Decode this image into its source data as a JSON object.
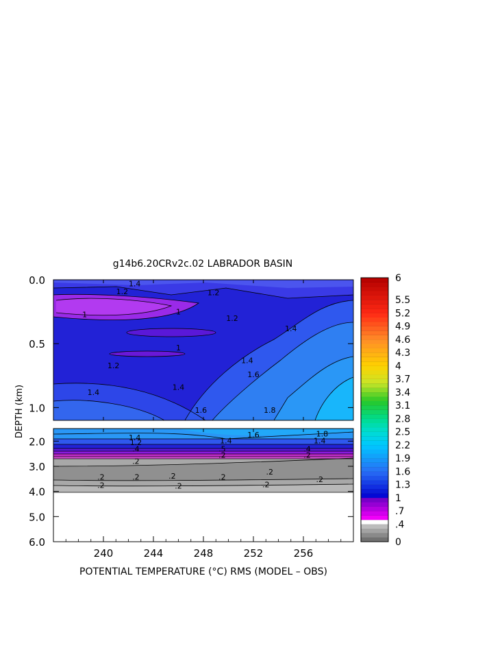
{
  "chart_data": {
    "type": "heatmap",
    "title": "g14b6.20CRv2c.02 LABRADOR BASIN",
    "xlabel": "POTENTIAL TEMPERATURE (°C) RMS (MODEL – OBS)",
    "ylabel": "DEPTH (km)",
    "x_ticks": [
      "240",
      "244",
      "248",
      "252",
      "256"
    ],
    "x_tick_values": [
      240,
      244,
      248,
      252,
      256
    ],
    "xlim": [
      236,
      260
    ],
    "upper_panel": {
      "ylim": [
        0.0,
        1.1
      ],
      "y_ticks": [
        "0.0",
        "0.5",
        "1.0"
      ],
      "y_tick_values": [
        0.0,
        0.5,
        1.0
      ]
    },
    "lower_panel": {
      "ylim": [
        1.5,
        6.0
      ],
      "y_ticks": [
        "2.0",
        "3.0",
        "4.0",
        "5.0",
        "6.0"
      ],
      "y_tick_values": [
        2.0,
        3.0,
        4.0,
        5.0,
        6.0
      ],
      "data_bottom_depth": 3.9
    },
    "colorbar": {
      "labels": [
        "6",
        "5.5",
        "5.2",
        "4.9",
        "4.6",
        "4.3",
        "4",
        "3.7",
        "3.4",
        "3.1",
        "2.8",
        "2.5",
        "2.2",
        "1.9",
        "1.6",
        "1.3",
        "1",
        ".7",
        ".4",
        "0"
      ],
      "label_values": [
        6,
        5.5,
        5.2,
        4.9,
        4.6,
        4.3,
        4,
        3.7,
        3.4,
        3.1,
        2.8,
        2.5,
        2.2,
        1.9,
        1.6,
        1.3,
        1,
        0.7,
        0.4,
        0
      ],
      "min": 0,
      "max": 6
    },
    "upper_contour_labels": [
      {
        "text": "1.4",
        "x": 242.5,
        "y": 0.03
      },
      {
        "text": "1.2",
        "x": 241.5,
        "y": 0.09
      },
      {
        "text": "1.2",
        "x": 248.8,
        "y": 0.1
      },
      {
        "text": "1",
        "x": 238.5,
        "y": 0.27
      },
      {
        "text": "1",
        "x": 246.0,
        "y": 0.25
      },
      {
        "text": "1.2",
        "x": 250.3,
        "y": 0.3
      },
      {
        "text": "1.4",
        "x": 255.0,
        "y": 0.38
      },
      {
        "text": "1",
        "x": 246.0,
        "y": 0.53
      },
      {
        "text": "1.2",
        "x": 240.8,
        "y": 0.67
      },
      {
        "text": "1.4",
        "x": 251.5,
        "y": 0.63
      },
      {
        "text": "1.4",
        "x": 239.2,
        "y": 0.88
      },
      {
        "text": "1.4",
        "x": 246.0,
        "y": 0.84
      },
      {
        "text": "1.6",
        "x": 252.0,
        "y": 0.74
      },
      {
        "text": "1.6",
        "x": 247.8,
        "y": 1.02
      },
      {
        "text": "1.8",
        "x": 253.3,
        "y": 1.02
      }
    ],
    "lower_contour_labels": [
      {
        "text": "1.4",
        "x": 242.5,
        "y": 1.85
      },
      {
        "text": "1.6",
        "x": 252.0,
        "y": 1.75
      },
      {
        "text": "1.8",
        "x": 257.5,
        "y": 1.7
      },
      {
        "text": "1.4",
        "x": 249.8,
        "y": 1.98
      },
      {
        "text": "1.4",
        "x": 257.3,
        "y": 1.98
      },
      {
        "text": "1.2",
        "x": 242.6,
        "y": 2.05
      },
      {
        "text": ".4",
        "x": 242.6,
        "y": 2.3
      },
      {
        "text": ".5",
        "x": 249.5,
        "y": 2.3
      },
      {
        "text": ".4",
        "x": 256.3,
        "y": 2.3
      },
      {
        "text": ".2",
        "x": 249.5,
        "y": 2.55
      },
      {
        "text": ".2",
        "x": 256.3,
        "y": 2.55
      },
      {
        "text": ".2",
        "x": 242.6,
        "y": 2.8
      },
      {
        "text": ".2",
        "x": 253.3,
        "y": 3.22
      },
      {
        "text": ".2",
        "x": 239.8,
        "y": 3.42
      },
      {
        "text": ".2",
        "x": 242.6,
        "y": 3.42
      },
      {
        "text": ".2",
        "x": 245.5,
        "y": 3.38
      },
      {
        "text": ".2",
        "x": 249.5,
        "y": 3.42
      },
      {
        "text": ".2",
        "x": 257.3,
        "y": 3.52
      },
      {
        "text": ".2",
        "x": 239.8,
        "y": 3.75
      },
      {
        "text": ".2",
        "x": 246.0,
        "y": 3.78
      },
      {
        "text": ".2",
        "x": 253.0,
        "y": 3.72
      }
    ]
  }
}
